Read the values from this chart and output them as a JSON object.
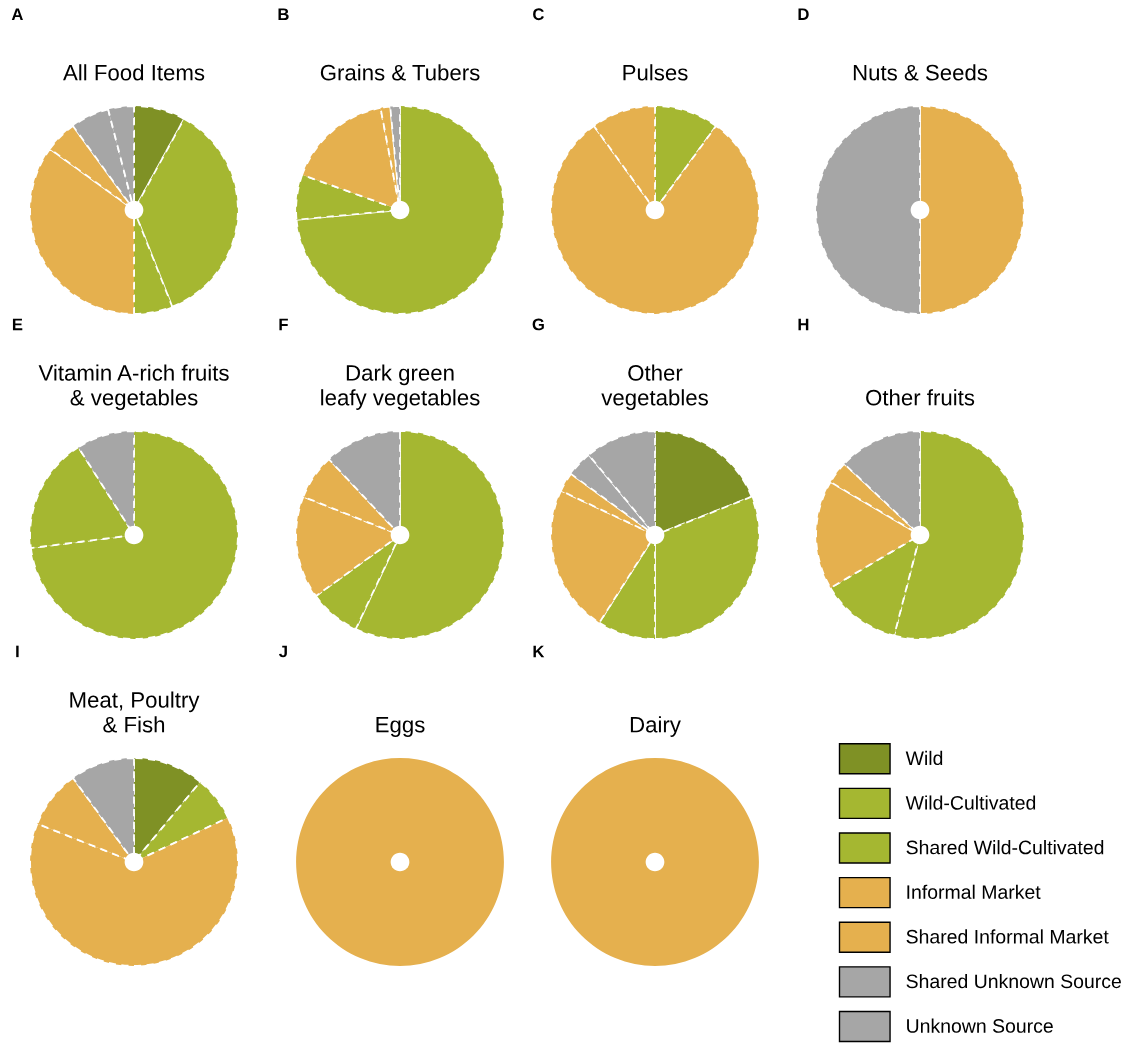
{
  "chart_data": [
    {
      "type": "pie",
      "title": "All Food Items",
      "annotations": [
        "A"
      ],
      "legend": "bottom right",
      "categories": [
        "Wild",
        "Wild-Cultivated",
        "Shared Wild-Cultivated",
        "Informal Market",
        "Shared Informal Market",
        "Shared Unknown Source",
        "Unknown Source"
      ],
      "values": [
        8,
        36,
        6,
        35,
        5,
        6,
        4
      ],
      "colors": [
        "#7f9125",
        "#a5b731",
        "#a5b731",
        "#e5b04e",
        "#e5b04e",
        "#a6a6a6",
        "#a6a6a6"
      ]
    },
    {
      "type": "pie",
      "title": "Grains & Tubers",
      "annotations": [
        "B"
      ],
      "categories": [
        null,
        null,
        null,
        null,
        null
      ],
      "values": [
        73.5,
        7,
        16.5,
        1.5,
        1.5
      ],
      "colors": [
        "#a5b731",
        "#a5b731",
        "#e5b04e",
        "#e5b04e",
        "#a6a6a6"
      ]
    },
    {
      "type": "pie",
      "title": "Pulses",
      "annotations": [
        "C"
      ],
      "categories": [
        null,
        null,
        null
      ],
      "values": [
        10,
        80,
        10
      ],
      "colors": [
        "#a5b731",
        "#e5b04e",
        "#e5b04e"
      ]
    },
    {
      "type": "pie",
      "title": "Nuts & Seeds",
      "annotations": [
        "D"
      ],
      "categories": [
        null,
        null
      ],
      "values": [
        50,
        50
      ],
      "colors": [
        "#e5b04e",
        "#a6a6a6"
      ]
    },
    {
      "type": "pie",
      "title": "Vitamin A-rich fruits\n& vegetables",
      "annotations": [
        "E"
      ],
      "categories": [
        null,
        null,
        null
      ],
      "values": [
        73,
        18,
        9
      ],
      "colors": [
        "#a5b731",
        "#a5b731",
        "#a6a6a6"
      ]
    },
    {
      "type": "pie",
      "title": "Dark green\nleafy vegetables",
      "annotations": [
        "F"
      ],
      "categories": [
        null,
        null,
        null,
        null,
        null
      ],
      "values": [
        57,
        8,
        16,
        7,
        12
      ],
      "colors": [
        "#a5b731",
        "#a5b731",
        "#e5b04e",
        "#e5b04e",
        "#a6a6a6"
      ]
    },
    {
      "type": "pie",
      "title": "Other\nvegetables",
      "annotations": [
        "G"
      ],
      "categories": [
        null,
        null,
        null,
        null,
        null,
        null,
        null
      ],
      "values": [
        19,
        31,
        9,
        23,
        3,
        4,
        11
      ],
      "colors": [
        "#7f9125",
        "#a5b731",
        "#a5b731",
        "#e5b04e",
        "#e5b04e",
        "#a6a6a6",
        "#a6a6a6"
      ]
    },
    {
      "type": "pie",
      "title": "Other fruits",
      "annotations": [
        "H"
      ],
      "categories": [
        null,
        null,
        null,
        null,
        null
      ],
      "values": [
        54,
        12.5,
        17,
        3.5,
        13
      ],
      "colors": [
        "#a5b731",
        "#a5b731",
        "#e5b04e",
        "#e5b04e",
        "#a6a6a6"
      ]
    },
    {
      "type": "pie",
      "title": "Meat, Poultry\n& Fish",
      "annotations": [
        "I"
      ],
      "categories": [
        null,
        null,
        null,
        null,
        null
      ],
      "values": [
        11,
        7,
        63,
        9,
        10
      ],
      "colors": [
        "#7f9125",
        "#a5b731",
        "#e5b04e",
        "#e5b04e",
        "#a6a6a6"
      ]
    },
    {
      "type": "pie",
      "title": "Eggs",
      "annotations": [
        "J"
      ],
      "categories": [
        null
      ],
      "values": [
        100
      ],
      "colors": [
        "#e5b04e"
      ]
    },
    {
      "type": "pie",
      "title": "Dairy",
      "annotations": [
        "K"
      ],
      "categories": [
        null
      ],
      "values": [
        100
      ],
      "colors": [
        "#e5b04e"
      ]
    }
  ]
}
